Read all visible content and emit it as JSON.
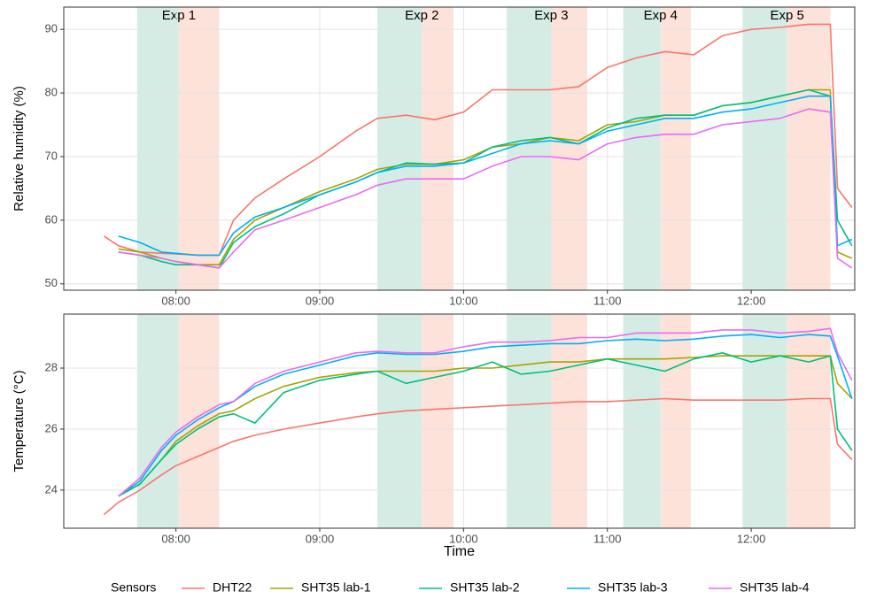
{
  "chart_data": [
    {
      "type": "line",
      "ylabel": "Relative humidity (%)",
      "x": [
        7.5,
        7.6,
        7.75,
        7.9,
        8.0,
        8.15,
        8.3,
        8.4,
        8.55,
        8.75,
        9.0,
        9.25,
        9.4,
        9.6,
        9.8,
        10.0,
        10.2,
        10.4,
        10.6,
        10.8,
        11.0,
        11.2,
        11.4,
        11.6,
        11.8,
        12.0,
        12.2,
        12.4,
        12.55,
        12.6,
        12.7
      ],
      "xlim": [
        7.22,
        12.72
      ],
      "xticks": [
        {
          "value": 8,
          "label": "08:00"
        },
        {
          "value": 9,
          "label": "09:00"
        },
        {
          "value": 10,
          "label": "10:00"
        },
        {
          "value": 11,
          "label": "11:00"
        },
        {
          "value": 12,
          "label": "12:00"
        }
      ],
      "ylim": [
        49,
        93.5
      ],
      "yticks": [
        50,
        60,
        70,
        80,
        90
      ],
      "grid": true,
      "experiments": [
        {
          "label": "Exp 1",
          "start": 7.73,
          "switch": 8.02,
          "end": 8.3,
          "colors": [
            "#d5ece5",
            "#fde2d9"
          ]
        },
        {
          "label": "Exp 2",
          "start": 9.4,
          "switch": 9.71,
          "end": 9.93,
          "colors": [
            "#d5ece5",
            "#fde2d9"
          ]
        },
        {
          "label": "Exp 3",
          "start": 10.3,
          "switch": 10.61,
          "end": 10.86,
          "colors": [
            "#d5ece5",
            "#fde2d9"
          ]
        },
        {
          "label": "Exp 4",
          "start": 11.11,
          "switch": 11.37,
          "end": 11.58,
          "colors": [
            "#d5ece5",
            "#fde2d9"
          ]
        },
        {
          "label": "Exp 5",
          "start": 11.94,
          "switch": 12.25,
          "end": 12.55,
          "colors": [
            "#d5ece5",
            "#fde2d9"
          ]
        }
      ],
      "legend": {
        "title": "Sensors",
        "position": "bottom"
      },
      "series": [
        {
          "name": "DHT22",
          "color": "#F8766D",
          "values": [
            57.5,
            56,
            55,
            54.8,
            54.7,
            54.5,
            54.5,
            60,
            63.5,
            66.5,
            70,
            74,
            76,
            76.5,
            75.8,
            77,
            80.5,
            80.5,
            80.5,
            81,
            84,
            85.5,
            86.5,
            86,
            89,
            90,
            90.3,
            90.8,
            90.8,
            65,
            62
          ]
        },
        {
          "name": "SHT35 lab-1",
          "color": "#A3A500",
          "values": [
            null,
            55.5,
            55,
            54,
            53.5,
            53,
            53,
            57,
            60,
            62,
            64.5,
            66.5,
            68,
            68.8,
            68.8,
            69.5,
            71.5,
            72,
            73,
            72.5,
            75,
            75.5,
            76.5,
            76.5,
            78,
            78.5,
            79.5,
            80.5,
            80.5,
            55,
            54
          ]
        },
        {
          "name": "SHT35 lab-2",
          "color": "#00BF7D",
          "values": [
            null,
            55,
            54.5,
            53.5,
            53,
            53,
            52.5,
            56.5,
            59,
            61,
            64,
            66,
            67.5,
            69,
            68.8,
            69,
            71.5,
            72.5,
            73,
            72,
            74.5,
            76,
            76.5,
            76.5,
            78,
            78.5,
            79.5,
            80.5,
            79.5,
            60,
            56
          ]
        },
        {
          "name": "SHT35 lab-3",
          "color": "#00B0F6",
          "values": [
            null,
            57.5,
            56.5,
            55,
            54.8,
            54.5,
            54.5,
            58,
            60.5,
            62,
            64,
            66,
            67.5,
            68.5,
            68.5,
            69,
            70.5,
            72,
            72.5,
            72,
            74,
            75,
            76,
            76,
            77,
            77.5,
            78.5,
            79.5,
            79.5,
            56,
            57
          ]
        },
        {
          "name": "SHT35 lab-4",
          "color": "#E76BF3",
          "values": [
            null,
            55,
            54.5,
            54,
            53.5,
            53,
            52.5,
            55,
            58.5,
            60,
            62,
            64,
            65.5,
            66.5,
            66.5,
            66.5,
            68.5,
            70,
            70,
            69.5,
            72,
            73,
            73.5,
            73.5,
            75,
            75.5,
            76,
            77.5,
            77,
            54,
            52.5
          ]
        }
      ]
    },
    {
      "type": "line",
      "ylabel": "Temperature (°C)",
      "xlabel": "Time",
      "x": [
        7.5,
        7.6,
        7.75,
        7.9,
        8.0,
        8.15,
        8.3,
        8.4,
        8.55,
        8.75,
        9.0,
        9.25,
        9.4,
        9.6,
        9.8,
        10.0,
        10.2,
        10.4,
        10.6,
        10.8,
        11.0,
        11.2,
        11.4,
        11.6,
        11.8,
        12.0,
        12.2,
        12.4,
        12.55,
        12.6,
        12.7
      ],
      "xlim": [
        7.22,
        12.72
      ],
      "xticks": [
        {
          "value": 8,
          "label": "08:00"
        },
        {
          "value": 9,
          "label": "09:00"
        },
        {
          "value": 10,
          "label": "10:00"
        },
        {
          "value": 11,
          "label": "11:00"
        },
        {
          "value": 12,
          "label": "12:00"
        }
      ],
      "ylim": [
        22.75,
        29.77
      ],
      "yticks": [
        24,
        26,
        28
      ],
      "grid": true,
      "series": [
        {
          "color": "#F8766D",
          "values": [
            23.2,
            23.6,
            24.0,
            24.5,
            24.8,
            25.1,
            25.4,
            25.6,
            25.8,
            26.0,
            26.2,
            26.4,
            26.5,
            26.6,
            26.65,
            26.7,
            26.75,
            26.8,
            26.85,
            26.9,
            26.9,
            26.95,
            27.0,
            26.95,
            26.95,
            26.95,
            26.95,
            27.0,
            27.0,
            25.5,
            25.0
          ]
        },
        {
          "color": "#A3A500",
          "values": [
            null,
            23.8,
            24.2,
            25.0,
            25.6,
            26.1,
            26.5,
            26.6,
            27.0,
            27.4,
            27.7,
            27.85,
            27.9,
            27.9,
            27.9,
            28.0,
            28.0,
            28.1,
            28.2,
            28.2,
            28.3,
            28.3,
            28.3,
            28.35,
            28.4,
            28.4,
            28.4,
            28.4,
            28.4,
            27.5,
            27.0
          ]
        },
        {
          "color": "#00BF7D",
          "values": [
            null,
            23.8,
            24.2,
            25.0,
            25.5,
            26.0,
            26.4,
            26.5,
            26.2,
            27.2,
            27.6,
            27.8,
            27.9,
            27.5,
            27.7,
            27.9,
            28.2,
            27.8,
            27.9,
            28.1,
            28.3,
            28.1,
            27.9,
            28.3,
            28.5,
            28.2,
            28.4,
            28.2,
            28.4,
            26.0,
            25.3
          ]
        },
        {
          "color": "#00B0F6",
          "values": [
            null,
            23.8,
            24.3,
            25.3,
            25.8,
            26.3,
            26.7,
            26.9,
            27.4,
            27.8,
            28.1,
            28.4,
            28.5,
            28.45,
            28.45,
            28.55,
            28.7,
            28.75,
            28.8,
            28.8,
            28.9,
            28.95,
            28.9,
            28.95,
            29.05,
            29.1,
            29.0,
            29.1,
            29.05,
            28.4,
            27.0
          ]
        },
        {
          "color": "#E76BF3",
          "values": [
            null,
            23.8,
            24.4,
            25.4,
            25.9,
            26.4,
            26.8,
            26.9,
            27.5,
            27.9,
            28.2,
            28.5,
            28.55,
            28.5,
            28.5,
            28.7,
            28.85,
            28.85,
            28.9,
            29.0,
            29.0,
            29.15,
            29.15,
            29.15,
            29.25,
            29.25,
            29.15,
            29.2,
            29.3,
            28.5,
            27.6
          ]
        }
      ]
    }
  ]
}
